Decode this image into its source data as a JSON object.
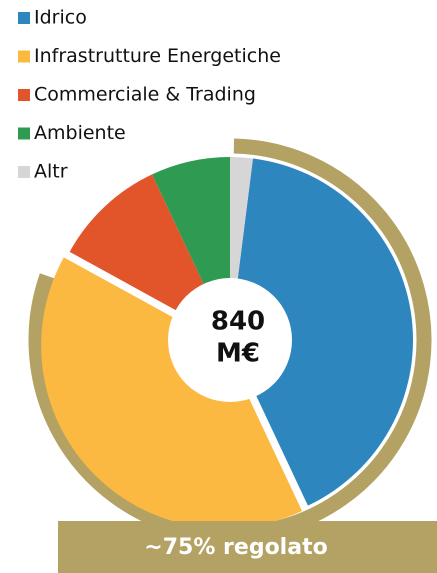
{
  "chart_data": {
    "type": "pie",
    "categories": [
      "Idrico",
      "Infrastrutture Energetiche",
      "Commerciale & Trading",
      "Ambiente",
      "Altr"
    ],
    "values": [
      41,
      40,
      10,
      7,
      2
    ],
    "colors": [
      "#2e86bf",
      "#fbb942",
      "#e2542a",
      "#2e9a52",
      "#d6d6d6"
    ],
    "center_label": [
      "840",
      "M€"
    ],
    "annotation": "~75% regolato"
  }
}
